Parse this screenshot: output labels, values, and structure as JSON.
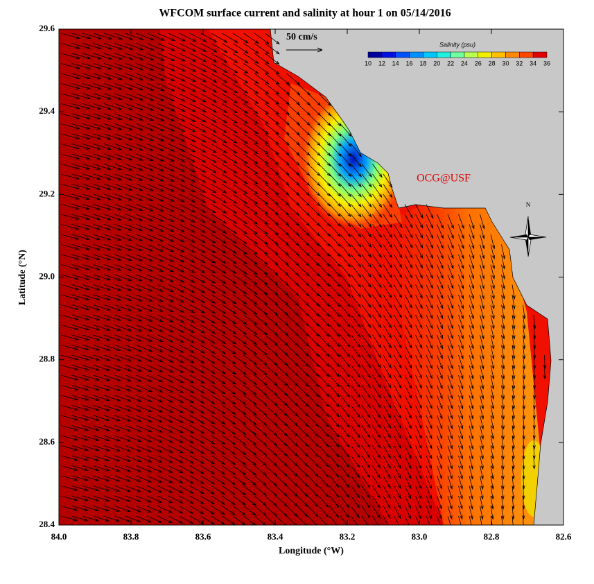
{
  "map": {
    "title": "WFCOM surface current and salinity at hour 1 on 05/14/2016",
    "xlabel": "Longitude (°W)",
    "ylabel": "Latitude (°N)",
    "xlim": [
      84,
      82.6
    ],
    "ylim": [
      28.4,
      29.6
    ],
    "xticks": [
      {
        "value": 84,
        "label": "84.0"
      },
      83.8,
      83.6,
      83.4,
      83.2,
      {
        "value": 83,
        "label": "83.0"
      },
      82.8,
      82.6
    ],
    "yticks": [
      28.4,
      28.6,
      28.8,
      {
        "value": 29,
        "label": "29.0"
      },
      29.2,
      29.4,
      29.6
    ],
    "scale_label": "50 cm/s",
    "credit": "OCG@USF",
    "north_label": "N",
    "colorbar": {
      "title": "Salinity (psu)",
      "ticks": [
        10,
        12,
        14,
        16,
        18,
        20,
        22,
        24,
        26,
        28,
        30,
        32,
        34,
        36
      ],
      "colors": [
        "#00009c",
        "#0010e0",
        "#0050ff",
        "#0090ff",
        "#00c8ff",
        "#20f0e0",
        "#70ffa0",
        "#b8ff50",
        "#f0f000",
        "#ffc000",
        "#ff8800",
        "#ff4400",
        "#e00000"
      ]
    }
  }
}
